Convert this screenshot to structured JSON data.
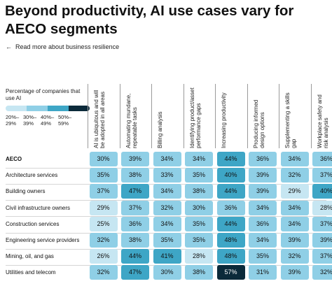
{
  "header": {
    "title": "Beyond productivity, AI use cases vary for AECO segments",
    "back_link": "Read more about business resilience",
    "back_icon": "arrow-left-icon"
  },
  "legend": {
    "title": "Percentage of companies that use AI",
    "bins": [
      {
        "label": "20%–29%",
        "color": "#c6e6f2"
      },
      {
        "label": "30%–39%",
        "color": "#8fcfe6"
      },
      {
        "label": "40%–49%",
        "color": "#3ea6c6"
      },
      {
        "label": "50%–59%",
        "color": "#0b2a3a"
      }
    ]
  },
  "chart_data": {
    "type": "heatmap",
    "title": "Beyond productivity, AI use cases vary for AECO segments",
    "value_unit": "%",
    "columns": [
      "AI is ubiquitous and will be adopted in all areas",
      "Automating mundane, repeatable tasks",
      "Billing analysis",
      "Identifying product/asset performance gaps",
      "Increasing productivity",
      "Producing informed design options",
      "Supplementing a skills gap",
      "Workplace safety and risk analysis"
    ],
    "rows": [
      "AECO",
      "Architecture services",
      "Building owners",
      "Civil infrastructure owners",
      "Construction services",
      "Engineering service providers",
      "Mining, oil, and gas",
      "Utilities and telecom"
    ],
    "values": [
      [
        30,
        39,
        34,
        34,
        44,
        36,
        34,
        36
      ],
      [
        35,
        38,
        33,
        35,
        40,
        39,
        32,
        37
      ],
      [
        37,
        47,
        34,
        38,
        44,
        39,
        29,
        40
      ],
      [
        29,
        37,
        32,
        30,
        36,
        34,
        34,
        28
      ],
      [
        25,
        36,
        34,
        35,
        44,
        36,
        34,
        37
      ],
      [
        32,
        38,
        35,
        35,
        48,
        34,
        39,
        39
      ],
      [
        26,
        44,
        41,
        28,
        48,
        35,
        32,
        37
      ],
      [
        32,
        47,
        30,
        38,
        57,
        31,
        39,
        32
      ]
    ]
  }
}
